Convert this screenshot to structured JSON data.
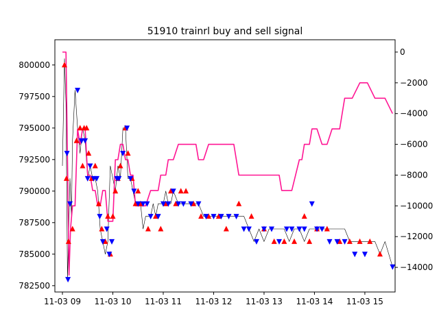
{
  "chart_data": {
    "type": "line",
    "title": "51910 trainrl buy and sell signal",
    "xlabel": "",
    "ylabel_left": "",
    "ylabel_right": "",
    "x_ticks": [
      "11-03 09",
      "11-03 10",
      "11-03 11",
      "11-03 12",
      "11-03 13",
      "11-03 14",
      "11-03 15"
    ],
    "x_range_hours": [
      8.85,
      15.6
    ],
    "y_left_range": [
      782000,
      802000
    ],
    "y_left_ticks": [
      782500,
      785000,
      787500,
      790000,
      792500,
      795000,
      797500,
      800000
    ],
    "y_left_tick_labels": [
      "782500",
      "785000",
      "787500",
      "790000",
      "792500",
      "795000",
      "797500",
      "800000"
    ],
    "y_right_range": [
      -15600,
      800
    ],
    "y_right_ticks": [
      -14000,
      -12000,
      -10000,
      -8000,
      -6000,
      -4000,
      -2000,
      0
    ],
    "y_right_tick_labels": [
      "−14000",
      "−12000",
      "−10000",
      "−8000",
      "−6000",
      "−4000",
      "−2000",
      "0"
    ],
    "colors": {
      "price": "#000000",
      "pnl": "#ff1493",
      "buy": "#ff0000",
      "sell": "#0000ff"
    },
    "series": [
      {
        "axis": "left",
        "style": "thin-line",
        "x": [
          9.0,
          9.04,
          9.07,
          9.1,
          9.12,
          9.15,
          9.18,
          9.2,
          9.25,
          9.3,
          9.35,
          9.4,
          9.45,
          9.5,
          9.55,
          9.6,
          9.65,
          9.7,
          9.75,
          9.8,
          9.85,
          9.9,
          9.95,
          10.0,
          10.05,
          10.1,
          10.15,
          10.2,
          10.25,
          10.3,
          10.35,
          10.4,
          10.45,
          10.5,
          10.55,
          10.6,
          10.65,
          10.7,
          10.75,
          10.8,
          10.85,
          10.9,
          10.95,
          11.0,
          11.05,
          11.1,
          11.15,
          11.2,
          11.3,
          11.4,
          11.5,
          11.6,
          11.7,
          11.8,
          11.9,
          12.0,
          12.1,
          12.2,
          12.3,
          12.4,
          12.5,
          12.6,
          12.7,
          12.8,
          12.9,
          13.0,
          13.1,
          13.2,
          13.3,
          13.4,
          13.5,
          13.6,
          13.7,
          13.8,
          13.9,
          14.0,
          14.1,
          14.2,
          14.3,
          14.4,
          14.5,
          14.6,
          14.7,
          14.8,
          14.9,
          15.0,
          15.1,
          15.2,
          15.3,
          15.4,
          15.55
        ],
        "values": [
          792000,
          800500,
          797000,
          783000,
          786000,
          791000,
          788000,
          794000,
          798000,
          795000,
          793000,
          795000,
          794000,
          791000,
          792000,
          791000,
          791000,
          790000,
          787000,
          786000,
          785000,
          786000,
          792000,
          791000,
          790000,
          792000,
          791000,
          795000,
          795000,
          791000,
          791000,
          790000,
          789000,
          789000,
          789000,
          787000,
          788000,
          788000,
          788000,
          789000,
          788000,
          789000,
          789000,
          789000,
          790000,
          789000,
          789000,
          790000,
          789000,
          789000,
          789000,
          789000,
          789000,
          788000,
          788000,
          788000,
          788000,
          788000,
          788000,
          788000,
          788000,
          788000,
          787000,
          786000,
          787000,
          786000,
          787000,
          787000,
          787000,
          787000,
          786000,
          787000,
          787000,
          786000,
          787000,
          787000,
          787000,
          787000,
          787000,
          787000,
          787000,
          787000,
          786000,
          786000,
          786000,
          786000,
          786000,
          786000,
          785000,
          786000,
          784000
        ]
      },
      {
        "axis": "right",
        "style": "thick-line",
        "x": [
          9.0,
          9.07,
          9.1,
          9.13,
          9.16,
          9.2,
          9.25,
          9.3,
          9.35,
          9.4,
          9.45,
          9.5,
          9.55,
          9.6,
          9.65,
          9.7,
          9.75,
          9.8,
          9.85,
          9.9,
          9.95,
          10.0,
          10.05,
          10.1,
          10.15,
          10.2,
          10.25,
          10.3,
          10.35,
          10.4,
          10.45,
          10.55,
          10.6,
          10.65,
          10.75,
          10.9,
          10.95,
          11.05,
          11.1,
          11.2,
          11.3,
          11.4,
          11.5,
          11.65,
          11.7,
          11.8,
          11.9,
          11.95,
          12.1,
          12.2,
          12.4,
          12.5,
          12.55,
          12.65,
          12.75,
          12.8,
          12.85,
          12.9,
          13.0,
          13.05,
          13.2,
          13.3,
          13.35,
          13.45,
          13.55,
          13.7,
          13.75,
          13.8,
          13.9,
          13.95,
          14.05,
          14.15,
          14.25,
          14.35,
          14.5,
          14.6,
          14.75,
          14.9,
          15.05,
          15.2,
          15.3,
          15.4,
          15.55
        ],
        "values": [
          0,
          0,
          -7000,
          -14500,
          -11500,
          -10000,
          -10000,
          -5000,
          -6000,
          -5000,
          -5000,
          -8000,
          -8000,
          -9000,
          -9000,
          -10000,
          -10000,
          -9000,
          -9000,
          -11000,
          -11000,
          -11000,
          -7000,
          -7000,
          -6000,
          -6000,
          -7000,
          -7000,
          -8000,
          -8000,
          -10000,
          -10000,
          -10000,
          -10000,
          -9000,
          -9000,
          -8000,
          -8000,
          -7000,
          -7000,
          -6000,
          -6000,
          -6000,
          -6000,
          -7000,
          -7000,
          -6000,
          -6000,
          -6000,
          -6000,
          -6000,
          -8000,
          -8000,
          -8000,
          -8000,
          -8000,
          -8000,
          -8000,
          -8000,
          -8000,
          -8000,
          -8000,
          -9000,
          -9000,
          -9000,
          -7000,
          -7000,
          -6000,
          -6000,
          -5000,
          -5000,
          -6000,
          -6000,
          -5000,
          -5000,
          -3000,
          -3000,
          -2000,
          -2000,
          -3000,
          -3000,
          -3000,
          -4000
        ]
      }
    ],
    "buy_signals": [
      [
        9.04,
        800000
      ],
      [
        9.08,
        791000
      ],
      [
        9.12,
        786000
      ],
      [
        9.2,
        787000
      ],
      [
        9.28,
        794000
      ],
      [
        9.35,
        795000
      ],
      [
        9.4,
        792000
      ],
      [
        9.43,
        795000
      ],
      [
        9.48,
        795000
      ],
      [
        9.52,
        793000
      ],
      [
        9.58,
        791000
      ],
      [
        9.65,
        792000
      ],
      [
        9.72,
        789000
      ],
      [
        9.78,
        787000
      ],
      [
        9.85,
        786000
      ],
      [
        9.9,
        788000
      ],
      [
        9.95,
        785000
      ],
      [
        10.0,
        788000
      ],
      [
        10.05,
        790000
      ],
      [
        10.1,
        791000
      ],
      [
        10.15,
        792000
      ],
      [
        10.25,
        795000
      ],
      [
        10.3,
        793000
      ],
      [
        10.38,
        791000
      ],
      [
        10.45,
        789000
      ],
      [
        10.5,
        790000
      ],
      [
        10.55,
        789000
      ],
      [
        10.7,
        787000
      ],
      [
        10.85,
        788000
      ],
      [
        10.95,
        787000
      ],
      [
        11.05,
        789000
      ],
      [
        11.15,
        790000
      ],
      [
        11.25,
        789000
      ],
      [
        11.35,
        790000
      ],
      [
        11.45,
        790000
      ],
      [
        11.6,
        789000
      ],
      [
        11.75,
        788000
      ],
      [
        11.9,
        788000
      ],
      [
        12.1,
        788000
      ],
      [
        12.25,
        787000
      ],
      [
        12.5,
        789000
      ],
      [
        12.75,
        788000
      ],
      [
        13.0,
        787000
      ],
      [
        13.2,
        786000
      ],
      [
        13.4,
        786000
      ],
      [
        13.6,
        786000
      ],
      [
        13.8,
        788000
      ],
      [
        13.9,
        786000
      ],
      [
        14.05,
        787000
      ],
      [
        14.25,
        787000
      ],
      [
        14.5,
        786000
      ],
      [
        14.7,
        786000
      ],
      [
        14.9,
        786000
      ],
      [
        15.1,
        786000
      ],
      [
        15.3,
        785000
      ]
    ],
    "sell_signals": [
      [
        9.09,
        793000
      ],
      [
        9.11,
        783000
      ],
      [
        9.15,
        789000
      ],
      [
        9.3,
        798000
      ],
      [
        9.38,
        794000
      ],
      [
        9.45,
        794000
      ],
      [
        9.5,
        791000
      ],
      [
        9.55,
        792000
      ],
      [
        9.62,
        791000
      ],
      [
        9.68,
        791000
      ],
      [
        9.74,
        788000
      ],
      [
        9.8,
        786000
      ],
      [
        9.88,
        787000
      ],
      [
        9.93,
        785000
      ],
      [
        9.98,
        786000
      ],
      [
        10.08,
        791000
      ],
      [
        10.12,
        791000
      ],
      [
        10.2,
        793000
      ],
      [
        10.28,
        795000
      ],
      [
        10.35,
        791000
      ],
      [
        10.42,
        790000
      ],
      [
        10.5,
        789000
      ],
      [
        10.6,
        789000
      ],
      [
        10.68,
        789000
      ],
      [
        10.75,
        788000
      ],
      [
        10.9,
        788000
      ],
      [
        11.0,
        789000
      ],
      [
        11.1,
        789000
      ],
      [
        11.2,
        790000
      ],
      [
        11.3,
        789000
      ],
      [
        11.4,
        789000
      ],
      [
        11.55,
        789000
      ],
      [
        11.7,
        789000
      ],
      [
        11.85,
        788000
      ],
      [
        12.0,
        788000
      ],
      [
        12.15,
        788000
      ],
      [
        12.3,
        788000
      ],
      [
        12.45,
        788000
      ],
      [
        12.6,
        787000
      ],
      [
        12.7,
        787000
      ],
      [
        12.85,
        786000
      ],
      [
        13.0,
        787000
      ],
      [
        13.15,
        787000
      ],
      [
        13.3,
        786000
      ],
      [
        13.45,
        787000
      ],
      [
        13.55,
        787000
      ],
      [
        13.7,
        787000
      ],
      [
        13.8,
        787000
      ],
      [
        13.95,
        789000
      ],
      [
        14.05,
        787000
      ],
      [
        14.15,
        787000
      ],
      [
        14.3,
        786000
      ],
      [
        14.45,
        786000
      ],
      [
        14.6,
        786000
      ],
      [
        14.8,
        785000
      ],
      [
        15.0,
        785000
      ],
      [
        15.55,
        784000
      ]
    ]
  }
}
